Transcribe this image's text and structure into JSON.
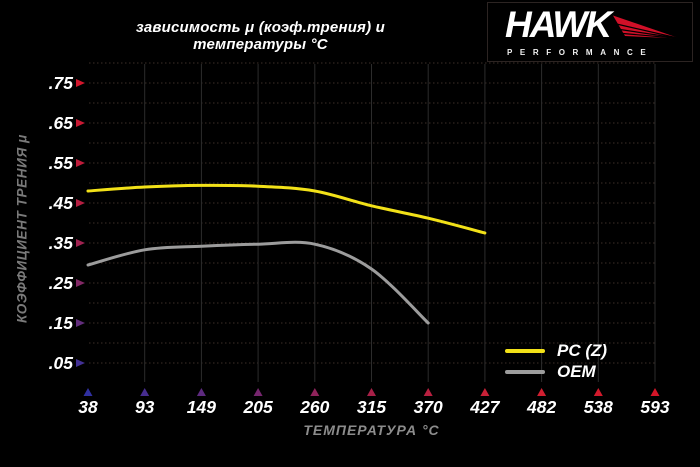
{
  "title": "зависимость μ (коэф.трения) и температуры °C",
  "logo": {
    "brand": "HAWK",
    "subtitle": "PERFORMANCE",
    "wing_color": "#d11028",
    "text_color": "#ffffff"
  },
  "legend": {
    "position": "bottom-right"
  },
  "chart_data": {
    "type": "line",
    "title": "зависимость μ (коэф.трения) и температуры °C",
    "xlabel": "ТЕМПЕРАТУРА °C",
    "ylabel": "КОЭФФИЦИЕНТ ТРЕНИЯ μ",
    "categories": [
      38,
      93,
      149,
      205,
      260,
      315,
      370,
      427,
      482,
      538,
      593
    ],
    "x_tick_labels": [
      "38",
      "93",
      "149",
      "205",
      "260",
      "315",
      "370",
      "427",
      "482",
      "538",
      "593"
    ],
    "y_ticks": [
      0.05,
      0.15,
      0.25,
      0.35,
      0.45,
      0.55,
      0.65,
      0.75
    ],
    "y_tick_labels": [
      ".05",
      ".15",
      ".25",
      ".35",
      ".45",
      ".55",
      ".65",
      ".75"
    ],
    "ylim": [
      0,
      0.8
    ],
    "grid": true,
    "legend_position": "bottom-right",
    "series": [
      {
        "name": "PC (Z)",
        "color": "#f2e118",
        "values": [
          0.48,
          0.49,
          0.494,
          0.492,
          0.48,
          0.443,
          0.412,
          0.375,
          null,
          null,
          null
        ]
      },
      {
        "name": "OEM",
        "color": "#9c9c9c",
        "values": [
          0.295,
          0.333,
          0.342,
          0.347,
          0.347,
          0.285,
          0.15,
          null,
          null,
          null,
          null
        ]
      }
    ],
    "style": {
      "background": "#000000",
      "tick_label_color": "#ffffff",
      "grid_h_color": "#3c2e28",
      "grid_v_color": "#2c2c2c",
      "y_axis_stops": [
        [
          0,
          "#d81528"
        ],
        [
          0.5,
          "#b01f45"
        ],
        [
          0.72,
          "#7a2a6a"
        ],
        [
          1,
          "#3232a0"
        ]
      ],
      "x_axis_stops": [
        [
          0,
          "#3030a0"
        ],
        [
          0.25,
          "#6a2878"
        ],
        [
          0.5,
          "#a82048"
        ],
        [
          0.75,
          "#d02133"
        ],
        [
          1,
          "#d41528"
        ]
      ]
    }
  }
}
